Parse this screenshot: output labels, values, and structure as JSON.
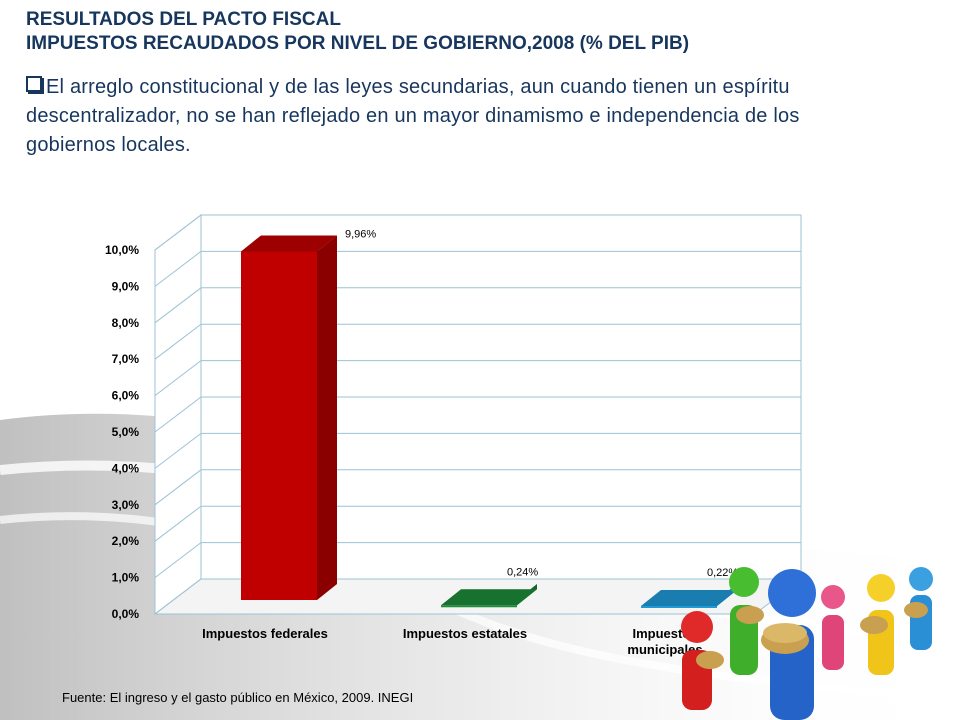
{
  "slide": {
    "title_line1": "RESULTADOS DEL PACTO FISCAL",
    "title_line2": "IMPUESTOS RECAUDADOS POR NIVEL DE GOBIERNO,2008 (% DEL PIB)",
    "bullet_text": "El arreglo constitucional y de las leyes secundarias, aun cuando tienen un espíritu descentralizador, no se han reflejado en un mayor dinamismo e independencia de  los gobiernos locales.",
    "source": "Fuente: El ingreso y el gasto público en México, 2009. INEGI"
  },
  "chart_data": {
    "type": "bar",
    "categories": [
      "Impuestos federales",
      "Impuestos estatales",
      "Impuestos municipales"
    ],
    "category_lines": [
      [
        "Impuestos federales"
      ],
      [
        "Impuestos estatales"
      ],
      [
        "Impuestos",
        "municipales"
      ]
    ],
    "values": [
      9.96,
      0.24,
      0.22
    ],
    "data_labels": [
      "9,96%",
      "0,24%",
      "0,22%"
    ],
    "bar_colors": [
      "#c00000",
      "#1e8c3a",
      "#1f9ad6"
    ],
    "ylim": [
      0,
      10
    ],
    "y_ticks": [
      "0,0%",
      "1,0%",
      "2,0%",
      "3,0%",
      "4,0%",
      "5,0%",
      "6,0%",
      "7,0%",
      "8,0%",
      "9,0%",
      "10,0%"
    ],
    "grid": true,
    "style": "3d"
  },
  "colors": {
    "title": "#17365d",
    "grid": "#9cc3d5"
  }
}
